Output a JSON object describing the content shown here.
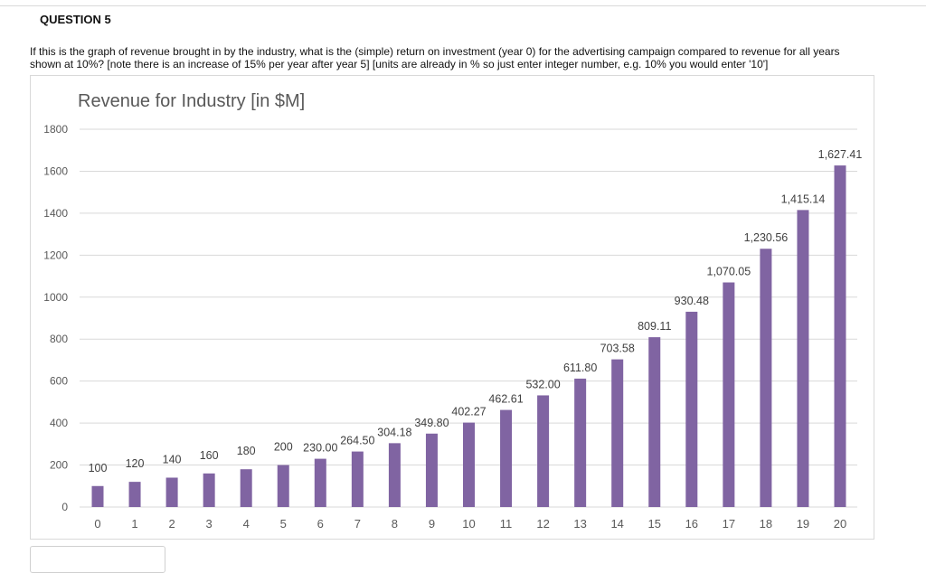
{
  "question": {
    "title": "QUESTION 5",
    "text": "If this is the graph of revenue brought in by the industry, what is the (simple) return on investment (year 0) for the advertising campaign compared to revenue for all years shown at 10%? [note there is an increase of 15% per year after year 5] [units are already in % so just enter integer number, e.g. 10% you would enter '10']",
    "answer_value": ""
  },
  "chart_data": {
    "type": "bar",
    "title": "Revenue for Industry [in $M]",
    "xlabel": "",
    "ylabel": "",
    "ylim": [
      0,
      1800
    ],
    "yticks": [
      "0",
      "200",
      "400",
      "600",
      "800",
      "1000",
      "1200",
      "1400",
      "1600",
      "1800"
    ],
    "grid": true,
    "bar_color": "#8064a2",
    "categories": [
      "0",
      "1",
      "2",
      "3",
      "4",
      "5",
      "6",
      "7",
      "8",
      "9",
      "10",
      "11",
      "12",
      "13",
      "14",
      "15",
      "16",
      "17",
      "18",
      "19",
      "20"
    ],
    "values": [
      100,
      120,
      140,
      160,
      180,
      200,
      230.0,
      264.5,
      304.18,
      349.8,
      402.27,
      462.61,
      532.0,
      611.8,
      703.58,
      809.11,
      930.48,
      1070.05,
      1230.56,
      1415.14,
      1627.41
    ],
    "data_labels": [
      "100",
      "120",
      "140",
      "160",
      "180",
      "200",
      "230.00",
      "264.50",
      "304.18",
      "349.80",
      "402.27",
      "462.61",
      "532.00",
      "611.80",
      "703.58",
      "809.11",
      "930.48",
      "1,070.05",
      "1,230.56",
      "1,415.14",
      "1,627.41"
    ]
  }
}
